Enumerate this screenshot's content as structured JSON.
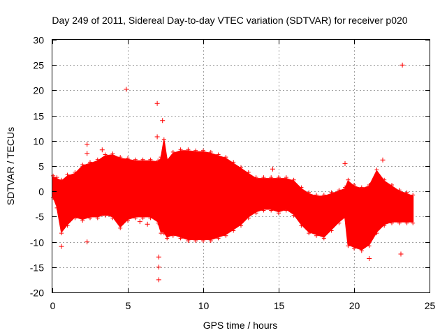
{
  "chart_data": {
    "type": "scatter",
    "title": "Day 249 of 2011, Sidereal Day-to-day VTEC variation (SDTVAR) for receiver p020",
    "xlabel": "GPS time / hours",
    "ylabel": "SDTVAR / TECUs",
    "xlim": [
      0,
      25
    ],
    "ylim": [
      -20,
      30
    ],
    "xticks": [
      0,
      5,
      10,
      15,
      20,
      25
    ],
    "yticks": [
      -20,
      -15,
      -10,
      -5,
      0,
      5,
      10,
      15,
      20,
      25,
      30
    ],
    "grid": true,
    "marker": "+",
    "series": [
      {
        "name": "SDTVAR",
        "color": "#ff0000",
        "envelope": {
          "hours": [
            0.05,
            0.3,
            0.6,
            1.0,
            1.5,
            2.0,
            2.5,
            3.0,
            3.5,
            4.0,
            4.5,
            5.0,
            5.5,
            6.0,
            6.5,
            7.0,
            7.2,
            7.4,
            7.6,
            8.0,
            8.5,
            9.0,
            9.5,
            10.0,
            10.5,
            11.0,
            11.5,
            12.0,
            12.5,
            13.0,
            13.5,
            14.0,
            14.5,
            15.0,
            15.5,
            16.0,
            16.5,
            17.0,
            17.5,
            18.0,
            18.5,
            19.0,
            19.4,
            19.6,
            20.0,
            20.5,
            21.0,
            21.5,
            22.0,
            22.5,
            23.0,
            23.5,
            23.9
          ],
          "upper": [
            2.8,
            2.5,
            2.0,
            3.0,
            3.5,
            5.0,
            5.5,
            6.0,
            7.0,
            7.2,
            6.5,
            6.3,
            6.0,
            6.0,
            6.0,
            5.8,
            6.5,
            10.0,
            6.0,
            7.5,
            8.0,
            8.0,
            7.8,
            7.8,
            7.5,
            7.0,
            6.5,
            5.5,
            4.5,
            3.5,
            2.5,
            2.5,
            2.5,
            2.5,
            2.5,
            2.0,
            0.5,
            -0.5,
            -1.0,
            -1.0,
            -0.5,
            0.0,
            0.5,
            2.0,
            1.0,
            0.5,
            1.0,
            4.0,
            2.0,
            1.0,
            0.0,
            -0.5,
            -1.0
          ],
          "lower": [
            -1.0,
            -3.0,
            -8.0,
            -6.5,
            -5.0,
            -5.5,
            -5.0,
            -5.0,
            -4.5,
            -5.0,
            -7.0,
            -5.5,
            -5.0,
            -5.0,
            -5.0,
            -6.0,
            -8.0,
            -8.0,
            -9.0,
            -8.5,
            -9.0,
            -9.5,
            -9.5,
            -9.5,
            -9.5,
            -9.0,
            -8.5,
            -7.5,
            -6.5,
            -5.0,
            -4.0,
            -3.5,
            -3.5,
            -4.0,
            -3.5,
            -4.5,
            -6.5,
            -8.0,
            -8.5,
            -9.0,
            -7.5,
            -6.0,
            -5.0,
            -10.5,
            -11.0,
            -11.5,
            -10.5,
            -8.0,
            -6.5,
            -6.0,
            -6.0,
            -6.0,
            -6.0
          ]
        },
        "outliers": [
          [
            23.2,
            25.0
          ],
          [
            4.9,
            20.2
          ],
          [
            6.95,
            17.4
          ],
          [
            7.3,
            14.0
          ],
          [
            6.95,
            10.8
          ],
          [
            2.3,
            9.3
          ],
          [
            2.3,
            7.5
          ],
          [
            3.3,
            8.2
          ],
          [
            14.6,
            4.4
          ],
          [
            19.4,
            5.5
          ],
          [
            21.9,
            6.2
          ],
          [
            21.0,
            -13.3
          ],
          [
            23.1,
            -12.4
          ],
          [
            0.6,
            -10.9
          ],
          [
            2.3,
            -10.0
          ],
          [
            7.05,
            -17.5
          ],
          [
            7.05,
            -15.0
          ],
          [
            7.05,
            -13.0
          ],
          [
            6.3,
            -6.5
          ],
          [
            5.8,
            -6.0
          ]
        ]
      }
    ]
  }
}
